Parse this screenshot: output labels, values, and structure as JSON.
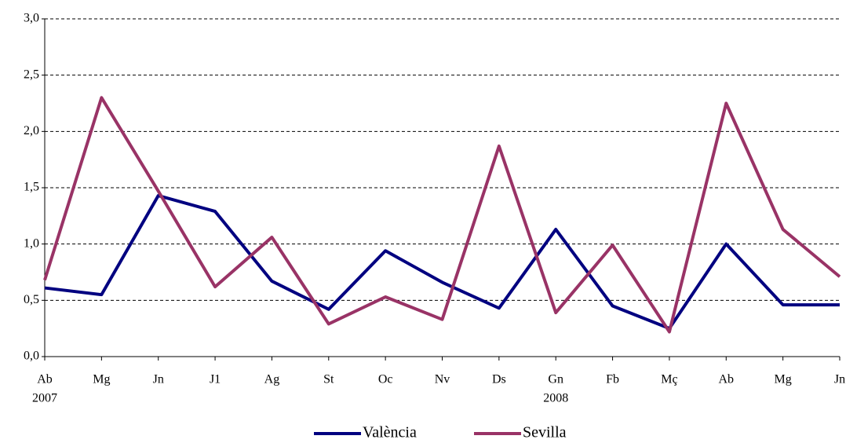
{
  "chart_data": {
    "type": "line",
    "categories": [
      "Ab",
      "Mg",
      "Jn",
      "J1",
      "Ag",
      "St",
      "Oc",
      "Nv",
      "Ds",
      "Gn",
      "Fb",
      "Mç",
      "Ab",
      "Mg",
      "Jn"
    ],
    "x_group_labels": [
      "2007",
      null,
      null,
      null,
      null,
      null,
      null,
      null,
      null,
      "2008",
      null,
      null,
      null,
      null,
      null
    ],
    "series": [
      {
        "name": "València",
        "color": "#000080",
        "values": [
          0.61,
          0.55,
          1.43,
          1.29,
          0.67,
          0.42,
          0.94,
          0.66,
          0.43,
          1.13,
          0.45,
          0.25,
          1.0,
          0.46,
          0.46
        ]
      },
      {
        "name": "Sevilla",
        "color": "#993366",
        "values": [
          0.68,
          2.3,
          1.47,
          0.62,
          1.06,
          0.29,
          0.53,
          0.33,
          1.87,
          0.39,
          0.99,
          0.22,
          2.25,
          1.13,
          0.71
        ]
      }
    ],
    "ylim": [
      0,
      3
    ],
    "yticks": [
      {
        "value": 0,
        "label": "0,0"
      },
      {
        "value": 0.5,
        "label": "0,5"
      },
      {
        "value": 1,
        "label": "1,0"
      },
      {
        "value": 1.5,
        "label": "1,5"
      },
      {
        "value": 2,
        "label": "2,0"
      },
      {
        "value": 2.5,
        "label": "2,5"
      },
      {
        "value": 3,
        "label": "3,0"
      }
    ],
    "grid": true,
    "legend": "bottom"
  }
}
